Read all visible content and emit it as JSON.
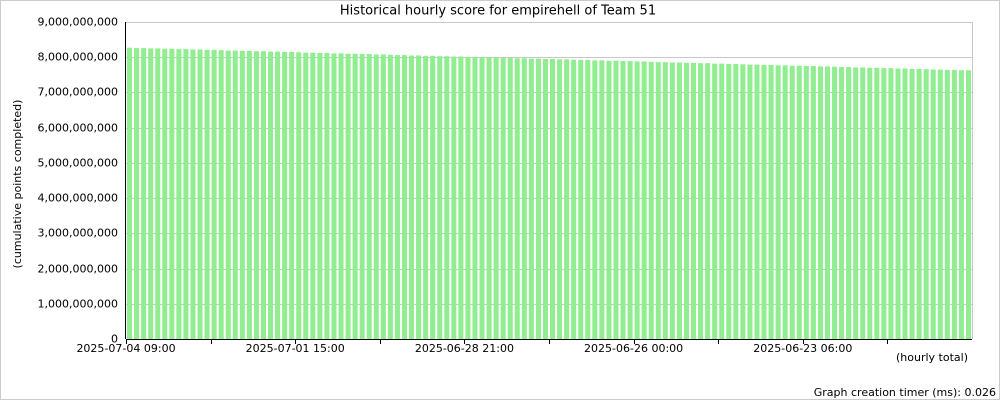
{
  "chart_data": {
    "type": "bar",
    "title": "Historical hourly score for empirehell of Team 51",
    "y_label": "(cumulative points completed)",
    "x_note": "(hourly total)",
    "footer": "Graph creation timer (ms): 0.026",
    "color": "#90ee90",
    "grid": true,
    "ylim": [
      0,
      9000000000
    ],
    "yticks": [
      0,
      {
        "value": 1000000000,
        "label": "1,000,000,000"
      },
      {
        "value": 2000000000,
        "label": "2,000,000,000"
      },
      {
        "value": 3000000000,
        "label": "3,000,000,000"
      },
      {
        "value": 4000000000,
        "label": "4,000,000,000"
      },
      {
        "value": 5000000000,
        "label": "5,000,000,000"
      },
      {
        "value": 6000000000,
        "label": "6,000,000,000"
      },
      {
        "value": 7000000000,
        "label": "7,000,000,000"
      },
      {
        "value": 8000000000,
        "label": "8,000,000,000"
      },
      {
        "value": 9000000000,
        "label": "9,000,000,000"
      }
    ],
    "categories": [
      "2025-07-04 09:00",
      null,
      null,
      null,
      null,
      null,
      null,
      null,
      null,
      null,
      null,
      null,
      null,
      null,
      null,
      null,
      null,
      null,
      null,
      null,
      null,
      null,
      null,
      null,
      "2025-07-01 15:00",
      null,
      null,
      null,
      null,
      null,
      null,
      null,
      null,
      null,
      null,
      null,
      null,
      null,
      null,
      null,
      null,
      null,
      null,
      null,
      null,
      null,
      null,
      null,
      "2025-06-28 21:00",
      null,
      null,
      null,
      null,
      null,
      null,
      null,
      null,
      null,
      null,
      null,
      null,
      null,
      null,
      null,
      null,
      null,
      null,
      null,
      null,
      null,
      null,
      null,
      "2025-06-26 00:00",
      null,
      null,
      null,
      null,
      null,
      null,
      null,
      null,
      null,
      null,
      null,
      null,
      null,
      null,
      null,
      null,
      null,
      null,
      null,
      null,
      null,
      null,
      null,
      "2025-06-23 06:00",
      null,
      null,
      null,
      null,
      null,
      null,
      null,
      null,
      null,
      null,
      null,
      null,
      null,
      null,
      null,
      null,
      null,
      null,
      null,
      null,
      null,
      null,
      null
    ],
    "values": [
      8270000000,
      8260000000,
      8260000000,
      8250000000,
      8250000000,
      8240000000,
      8240000000,
      8230000000,
      8230000000,
      8220000000,
      8220000000,
      8210000000,
      8210000000,
      8200000000,
      8190000000,
      8190000000,
      8180000000,
      8180000000,
      8170000000,
      8170000000,
      8160000000,
      8160000000,
      8150000000,
      8150000000,
      8140000000,
      8130000000,
      8130000000,
      8120000000,
      8120000000,
      8110000000,
      8110000000,
      8100000000,
      8100000000,
      8090000000,
      8090000000,
      8080000000,
      8080000000,
      8070000000,
      8060000000,
      8060000000,
      8050000000,
      8050000000,
      8040000000,
      8040000000,
      8030000000,
      8030000000,
      8020000000,
      8020000000,
      8010000000,
      8010000000,
      8000000000,
      7990000000,
      7990000000,
      7980000000,
      7980000000,
      7970000000,
      7970000000,
      7960000000,
      7960000000,
      7950000000,
      7950000000,
      7940000000,
      7940000000,
      7930000000,
      7920000000,
      7920000000,
      7910000000,
      7910000000,
      7900000000,
      7900000000,
      7890000000,
      7890000000,
      7880000000,
      7880000000,
      7870000000,
      7860000000,
      7860000000,
      7850000000,
      7850000000,
      7840000000,
      7840000000,
      7830000000,
      7830000000,
      7820000000,
      7820000000,
      7810000000,
      7810000000,
      7800000000,
      7790000000,
      7790000000,
      7780000000,
      7780000000,
      7770000000,
      7770000000,
      7760000000,
      7760000000,
      7750000000,
      7750000000,
      7740000000,
      7740000000,
      7730000000,
      7720000000,
      7720000000,
      7710000000,
      7710000000,
      7700000000,
      7700000000,
      7690000000,
      7690000000,
      7680000000,
      7680000000,
      7670000000,
      7670000000,
      7660000000,
      7650000000,
      7650000000,
      7640000000,
      7640000000,
      7630000000,
      7630000000
    ]
  }
}
